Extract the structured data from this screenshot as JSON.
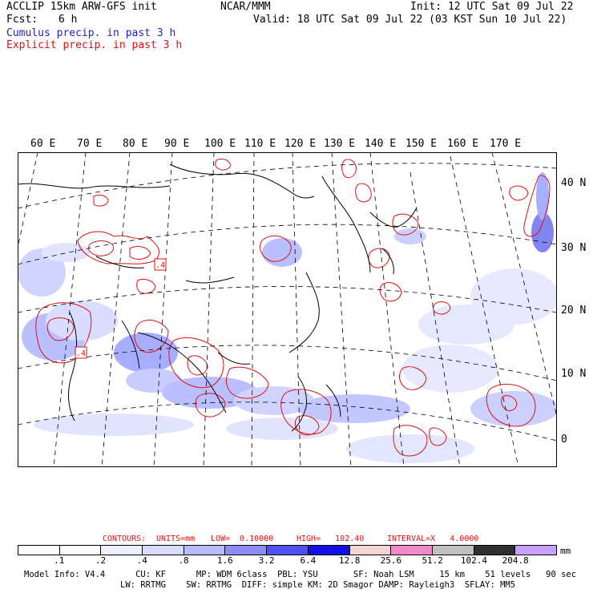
{
  "header": {
    "model_line": "ACCLIP 15km ARW-GFS init",
    "center": "NCAR/MMM",
    "init": "Init: 12 UTC Sat 09 Jul 22",
    "fcst_label": "Fcst:",
    "fcst_value": "6 h",
    "valid": "Valid: 18 UTC Sat 09 Jul 22 (03 KST Sun 10 Jul 22)",
    "legend_cumulus": "Cumulus precip. in past 3 h",
    "legend_explicit": "Explicit precip. in past 3 h"
  },
  "map": {
    "lon_labels": [
      "60 E",
      "70 E",
      "80 E",
      "90 E",
      "100 E",
      "110 E",
      "120 E",
      "130 E",
      "140 E",
      "150 E",
      "160 E",
      "170 E"
    ],
    "lat_labels": [
      "40 N",
      "30 N",
      "20 N",
      "10 N",
      "0"
    ],
    "contour_labels": [
      ".4",
      ".4"
    ],
    "colors": {
      "cumulus": "#3344dd",
      "explicit": "#dd1111",
      "coast": "#000000",
      "grid": "#000000"
    }
  },
  "contour_info": {
    "contours": "CONTOURS:",
    "units": "UNITS=mm",
    "low": "LOW=  0.10000",
    "high": "HIGH=   102.40",
    "interval": "INTERVAL=X   4.0000"
  },
  "colorbar": {
    "units": "mm",
    "ticks": [
      ".1",
      ".2",
      ".4",
      ".8",
      "1.6",
      "3.2",
      "6.4",
      "12.8",
      "25.6",
      "51.2",
      "102.4",
      "204.8"
    ],
    "colors": [
      "#ffffff",
      "#ffffff",
      "#eef0ff",
      "#d8dcff",
      "#b8bcff",
      "#8c8cff",
      "#5050f0",
      "#1010e0",
      "#f6d4d4",
      "#f28ac8",
      "#c0c0c0",
      "#303030",
      "#c8a0ff"
    ]
  },
  "footer": {
    "line1": "Model Info: V4.4      CU: KF      MP: WDM 6class  PBL: YSU       SF: Noah LSM     15 km    51 levels   90 sec",
    "line2": "LW: RRTMG    SW: RRTMG  DIFF: simple KM: 2D Smagor DAMP: Rayleigh3  SFLAY: MM5"
  }
}
